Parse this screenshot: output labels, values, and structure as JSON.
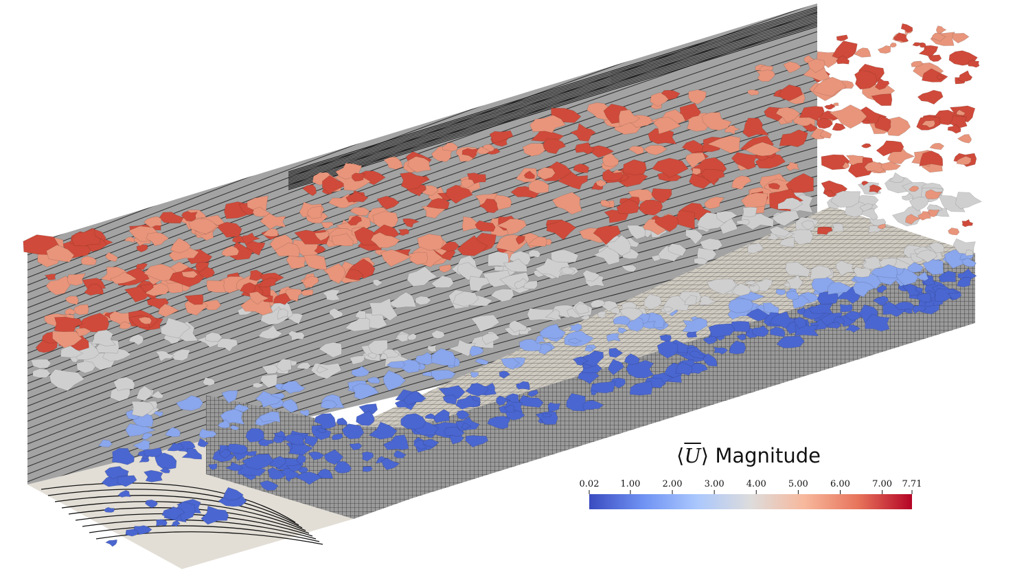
{
  "legend": {
    "title_symbol": "U",
    "title_text": "Magnitude",
    "range": [
      0.02,
      7.71
    ],
    "ticks": [
      "0.02",
      "1.00",
      "2.00",
      "3.00",
      "4.00",
      "5.00",
      "6.00",
      "7.00",
      "7.71"
    ],
    "tick_values": [
      0.02,
      1.0,
      2.0,
      3.0,
      4.0,
      5.0,
      6.0,
      7.0,
      7.71
    ],
    "colormap": [
      "#3b4cc0",
      "#6f92f3",
      "#aac7fd",
      "#dddcdc",
      "#f7b89c",
      "#e7745b",
      "#b40426"
    ],
    "colormap_name": "coolwarm"
  },
  "scene": {
    "wall_color": "#999999",
    "floor_color": "#e2ded6",
    "grid_color": "#3a3a3a",
    "iso_colors": {
      "low": "#4a66d0",
      "mid_low": "#8aa6ec",
      "mid": "#cfcfd0",
      "mid_high": "#e8957b",
      "high": "#cf4a3a"
    }
  }
}
